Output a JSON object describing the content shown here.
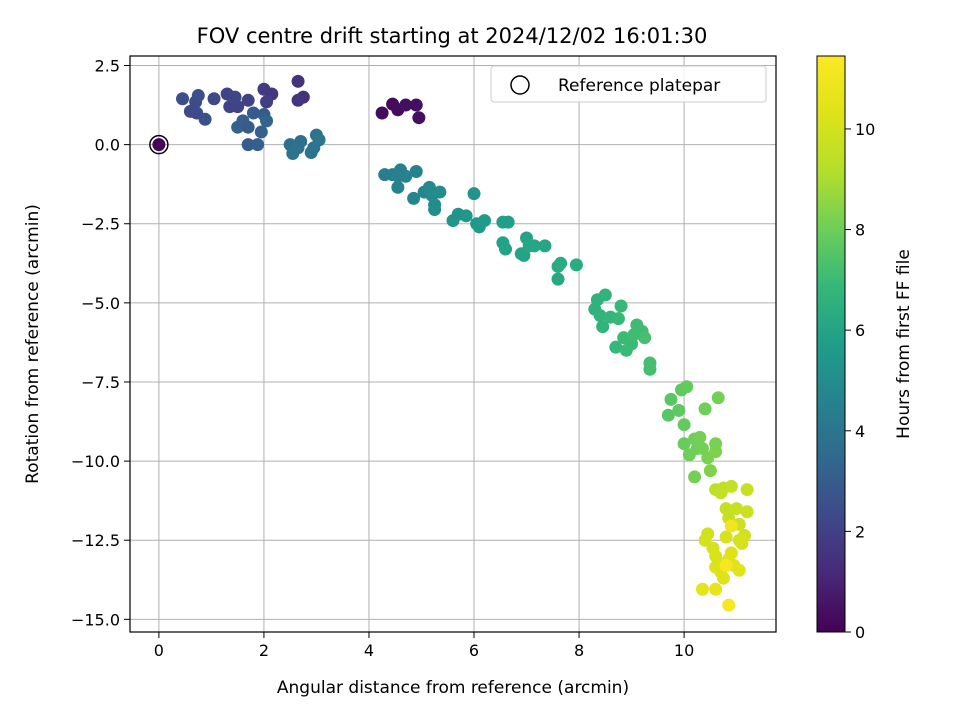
{
  "chart_data": {
    "type": "scatter",
    "title": "FOV centre drift starting at 2024/12/02 16:01:30",
    "xlabel": "Angular distance from reference (arcmin)",
    "ylabel": "Rotation from reference (arcmin)",
    "colorbar_label": "Hours from first FF file",
    "xlim": [
      -0.55,
      11.75
    ],
    "ylim": [
      -15.4,
      2.8
    ],
    "clim": [
      0,
      11.45
    ],
    "x_ticks": [
      0,
      2,
      4,
      6,
      8,
      10
    ],
    "x_tick_labels": [
      "0",
      "2",
      "4",
      "6",
      "8",
      "10"
    ],
    "y_ticks": [
      2.5,
      0,
      -2.5,
      -5,
      -7.5,
      -10,
      -12.5,
      -15
    ],
    "y_tick_labels": [
      "2.5",
      "0.0",
      "−2.5",
      "−5.0",
      "−7.5",
      "−10.0",
      "−12.5",
      "−15.0"
    ],
    "c_ticks": [
      0,
      2,
      4,
      6,
      8,
      10
    ],
    "c_tick_labels": [
      "0",
      "2",
      "4",
      "6",
      "8",
      "10"
    ],
    "grid": true,
    "colormap": "viridis",
    "legend": {
      "position": "top-right",
      "entries": [
        "Reference platepar"
      ]
    },
    "reference_point": {
      "x": 0,
      "y": 0
    },
    "points": [
      [
        0.0,
        0.0,
        0.1
      ],
      [
        4.25,
        1.0,
        0.3
      ],
      [
        4.45,
        1.28,
        0.3
      ],
      [
        4.55,
        1.1,
        0.3
      ],
      [
        4.7,
        1.25,
        0.4
      ],
      [
        4.9,
        1.25,
        0.4
      ],
      [
        4.95,
        0.85,
        0.4
      ],
      [
        0.45,
        1.45,
        2.5
      ],
      [
        0.6,
        1.05,
        2.4
      ],
      [
        0.7,
        1.35,
        2.4
      ],
      [
        0.75,
        1.55,
        2.5
      ],
      [
        0.72,
        1.0,
        2.4
      ],
      [
        0.88,
        0.8,
        2.6
      ],
      [
        1.05,
        1.45,
        2.3
      ],
      [
        1.3,
        1.6,
        2.1
      ],
      [
        1.35,
        1.2,
        2.0
      ],
      [
        1.5,
        1.2,
        2.1
      ],
      [
        1.45,
        1.5,
        2.2
      ],
      [
        1.7,
        1.4,
        2.0
      ],
      [
        2.0,
        1.75,
        1.8
      ],
      [
        2.15,
        1.6,
        1.7
      ],
      [
        2.05,
        1.35,
        1.9
      ],
      [
        2.65,
        2.0,
        1.5
      ],
      [
        2.75,
        1.5,
        1.5
      ],
      [
        2.65,
        1.4,
        1.6
      ],
      [
        1.5,
        0.55,
        3.2
      ],
      [
        1.6,
        0.75,
        3.1
      ],
      [
        1.7,
        0.55,
        3.0
      ],
      [
        1.8,
        1.0,
        2.9
      ],
      [
        1.7,
        0.0,
        3.0
      ],
      [
        1.88,
        0.0,
        3.1
      ],
      [
        1.95,
        0.4,
        3.2
      ],
      [
        2.0,
        0.95,
        3.0
      ],
      [
        2.05,
        0.75,
        3.3
      ],
      [
        2.5,
        0.0,
        3.8
      ],
      [
        2.55,
        -0.28,
        3.9
      ],
      [
        2.65,
        -0.1,
        3.9
      ],
      [
        2.7,
        0.1,
        3.8
      ],
      [
        2.9,
        -0.25,
        3.9
      ],
      [
        2.95,
        -0.1,
        4.0
      ],
      [
        3.0,
        0.3,
        3.9
      ],
      [
        3.05,
        0.15,
        4.0
      ],
      [
        4.3,
        -0.95,
        4.4
      ],
      [
        4.45,
        -0.95,
        4.4
      ],
      [
        4.55,
        -1.0,
        4.5
      ],
      [
        4.6,
        -0.8,
        4.5
      ],
      [
        4.7,
        -1.0,
        4.6
      ],
      [
        4.55,
        -1.35,
        4.6
      ],
      [
        4.85,
        -1.7,
        4.7
      ],
      [
        4.9,
        -0.85,
        4.6
      ],
      [
        5.05,
        -1.5,
        4.8
      ],
      [
        5.15,
        -1.35,
        4.9
      ],
      [
        5.2,
        -1.6,
        4.9
      ],
      [
        5.25,
        -1.9,
        5.0
      ],
      [
        5.25,
        -2.05,
        5.0
      ],
      [
        5.35,
        -1.5,
        5.0
      ],
      [
        5.6,
        -2.4,
        5.3
      ],
      [
        5.7,
        -2.2,
        5.3
      ],
      [
        5.85,
        -2.25,
        5.4
      ],
      [
        6.0,
        -1.55,
        5.3
      ],
      [
        6.05,
        -2.5,
        5.5
      ],
      [
        6.1,
        -2.6,
        5.5
      ],
      [
        6.2,
        -2.4,
        5.6
      ],
      [
        6.55,
        -2.45,
        5.8
      ],
      [
        6.55,
        -3.1,
        5.9
      ],
      [
        6.6,
        -3.3,
        5.9
      ],
      [
        6.65,
        -2.45,
        5.8
      ],
      [
        6.9,
        -3.45,
        6.0
      ],
      [
        6.95,
        -3.5,
        6.0
      ],
      [
        7.0,
        -2.95,
        6.0
      ],
      [
        7.05,
        -3.2,
        6.1
      ],
      [
        7.15,
        -3.2,
        6.1
      ],
      [
        7.35,
        -3.2,
        6.1
      ],
      [
        7.6,
        -4.25,
        6.2
      ],
      [
        7.6,
        -3.85,
        6.3
      ],
      [
        7.65,
        -3.75,
        6.3
      ],
      [
        7.95,
        -3.8,
        6.3
      ],
      [
        8.3,
        -5.2,
        6.6
      ],
      [
        8.35,
        -4.9,
        6.6
      ],
      [
        8.4,
        -5.4,
        6.7
      ],
      [
        8.45,
        -5.75,
        6.7
      ],
      [
        8.5,
        -4.75,
        6.7
      ],
      [
        8.6,
        -5.45,
        6.8
      ],
      [
        8.7,
        -6.4,
        6.9
      ],
      [
        8.75,
        -5.5,
        6.9
      ],
      [
        8.8,
        -5.1,
        6.9
      ],
      [
        8.9,
        -6.5,
        7.0
      ],
      [
        8.85,
        -6.1,
        7.0
      ],
      [
        9.0,
        -6.3,
        7.0
      ],
      [
        9.05,
        -6.0,
        7.1
      ],
      [
        9.1,
        -5.7,
        7.1
      ],
      [
        9.2,
        -5.9,
        7.1
      ],
      [
        9.35,
        -6.9,
        7.2
      ],
      [
        9.35,
        -7.1,
        7.2
      ],
      [
        9.25,
        -6.1,
        7.2
      ],
      [
        9.7,
        -8.55,
        7.6
      ],
      [
        9.75,
        -8.05,
        7.6
      ],
      [
        9.9,
        -8.4,
        7.7
      ],
      [
        9.95,
        -7.75,
        7.7
      ],
      [
        10.0,
        -8.85,
        7.8
      ],
      [
        10.05,
        -7.65,
        7.8
      ],
      [
        10.0,
        -9.45,
        7.9
      ],
      [
        10.1,
        -9.8,
        8.0
      ],
      [
        10.2,
        -9.3,
        8.0
      ],
      [
        10.2,
        -10.5,
        8.1
      ],
      [
        10.25,
        -9.6,
        8.0
      ],
      [
        10.3,
        -9.25,
        8.1
      ],
      [
        10.35,
        -9.6,
        8.1
      ],
      [
        10.4,
        -8.35,
        8.0
      ],
      [
        10.45,
        -9.9,
        8.2
      ],
      [
        10.5,
        -10.3,
        8.3
      ],
      [
        10.6,
        -9.7,
        8.3
      ],
      [
        10.6,
        -9.45,
        8.2
      ],
      [
        10.65,
        -8.0,
        8.1
      ],
      [
        10.6,
        -10.9,
        9.4
      ],
      [
        10.7,
        -11.0,
        9.5
      ],
      [
        10.75,
        -10.85,
        9.5
      ],
      [
        10.8,
        -11.5,
        9.6
      ],
      [
        10.85,
        -11.8,
        9.7
      ],
      [
        10.9,
        -10.8,
        9.6
      ],
      [
        11.0,
        -11.5,
        9.7
      ],
      [
        11.05,
        -12.0,
        9.8
      ],
      [
        11.1,
        -12.6,
        10.0
      ],
      [
        11.15,
        -12.35,
        9.9
      ],
      [
        11.2,
        -10.9,
        9.7
      ],
      [
        11.2,
        -11.6,
        9.8
      ],
      [
        10.45,
        -12.3,
        9.9
      ],
      [
        10.4,
        -12.5,
        10.0
      ],
      [
        10.55,
        -12.75,
        10.1
      ],
      [
        10.6,
        -13.0,
        10.2
      ],
      [
        10.6,
        -13.35,
        10.3
      ],
      [
        10.65,
        -13.2,
        10.2
      ],
      [
        10.7,
        -13.5,
        10.3
      ],
      [
        10.75,
        -13.7,
        10.4
      ],
      [
        10.8,
        -12.4,
        10.1
      ],
      [
        10.85,
        -13.1,
        10.3
      ],
      [
        10.9,
        -12.9,
        10.3
      ],
      [
        10.95,
        -13.3,
        10.4
      ],
      [
        11.05,
        -13.45,
        10.5
      ],
      [
        10.35,
        -14.05,
        10.6
      ],
      [
        10.6,
        -14.05,
        10.7
      ],
      [
        10.85,
        -14.55,
        11.3
      ],
      [
        10.8,
        -13.3,
        11.3
      ],
      [
        10.9,
        -12.05,
        11.0
      ],
      [
        11.05,
        -12.5,
        10.1
      ]
    ]
  }
}
